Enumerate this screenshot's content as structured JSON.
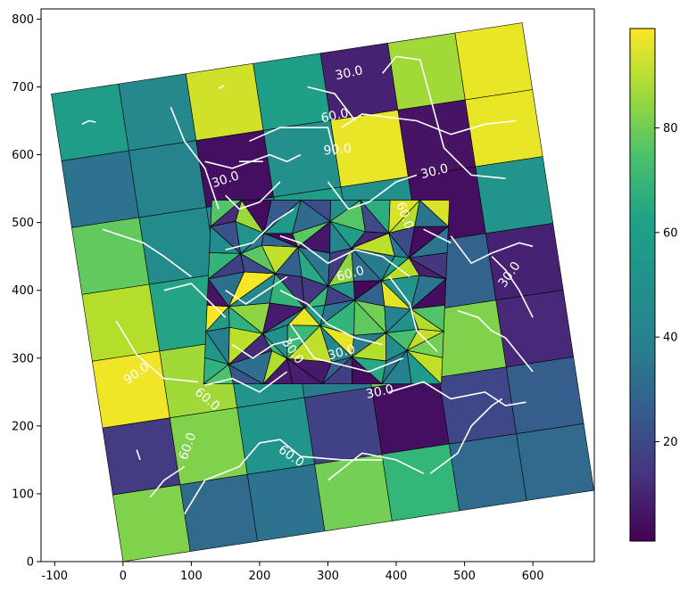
{
  "chart_data": {
    "type": "heatmap",
    "title": "",
    "xlabel": "",
    "ylabel": "",
    "xlim": [
      -120,
      690
    ],
    "ylim": [
      0,
      815
    ],
    "x_ticks": [
      -100,
      0,
      100,
      200,
      300,
      400,
      500,
      600
    ],
    "y_ticks": [
      0,
      100,
      200,
      300,
      400,
      500,
      600,
      700,
      800
    ],
    "colormap": "viridis",
    "colorbar": {
      "range": [
        1,
        99
      ],
      "ticks": [
        20,
        40,
        60,
        80
      ]
    },
    "grid": false,
    "grid_geometry": {
      "origin": [
        0,
        0
      ],
      "x_step": [
        98.5,
        15.0
      ],
      "y_step": [
        -15.0,
        98.5
      ],
      "columns": 7,
      "rows": 7
    },
    "grid_values": [
      [
        80,
        35,
        38,
        78,
        66,
        35,
        35
      ],
      [
        18,
        80,
        52,
        20,
        5,
        22,
        30
      ],
      [
        97,
        85,
        52,
        42,
        76,
        80,
        12
      ],
      [
        88,
        58,
        50,
        44,
        35,
        32,
        10
      ],
      [
        75,
        48,
        48,
        55,
        50,
        5,
        52
      ],
      [
        38,
        45,
        5,
        50,
        96,
        6,
        96
      ],
      [
        55,
        47,
        92,
        56,
        10,
        85,
        96
      ]
    ],
    "mesh": {
      "bounds": {
        "x": [
          118,
          478
        ],
        "y": [
          262,
          533
        ]
      },
      "triangle_values_note": "random values on a triangulated inner region"
    },
    "contours": {
      "color": "#ffffff",
      "levels": [
        30,
        60,
        90
      ],
      "labels": [
        {
          "text": "30.0",
          "x": 331,
          "y": 720,
          "angle": 12
        },
        {
          "text": "60.0",
          "x": 310,
          "y": 657,
          "angle": 12
        },
        {
          "text": "90.0",
          "x": 314,
          "y": 607,
          "angle": 5
        },
        {
          "text": "30.0",
          "x": 150,
          "y": 563,
          "angle": 18
        },
        {
          "text": "30.0",
          "x": 456,
          "y": 575,
          "angle": 14
        },
        {
          "text": "30.0",
          "x": 566,
          "y": 423,
          "angle": 55
        },
        {
          "text": "90.0",
          "x": 20,
          "y": 277,
          "angle": 35
        },
        {
          "text": "60.0",
          "x": 95,
          "y": 170,
          "angle": 70
        },
        {
          "text": "60.0",
          "x": 246,
          "y": 155,
          "angle": -35
        },
        {
          "text": "30.0",
          "x": 376,
          "y": 250,
          "angle": 12
        },
        {
          "text": "60.0",
          "x": 123,
          "y": 239,
          "angle": -40
        },
        {
          "text": "60.0",
          "x": 333,
          "y": 424,
          "angle": 15
        },
        {
          "text": "30.0",
          "x": 248,
          "y": 310,
          "angle": -55
        },
        {
          "text": "30.0",
          "x": 320,
          "y": 308,
          "angle": 15
        },
        {
          "text": "60.0",
          "x": 412,
          "y": 510,
          "angle": -70
        }
      ]
    }
  }
}
